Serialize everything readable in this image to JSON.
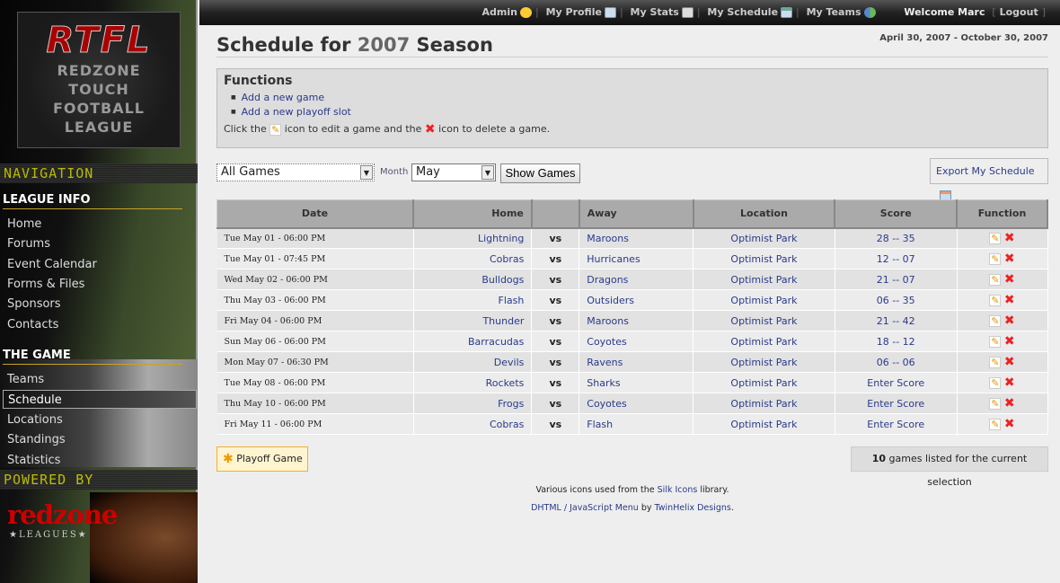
{
  "logo": {
    "abbr": "RTFL",
    "lines": [
      "REDZONE",
      "TOUCH",
      "FOOTBALL",
      "LEAGUE"
    ]
  },
  "sidebar": {
    "navigation_label": "NAVIGATION",
    "league_info_label": "LEAGUE INFO",
    "league_info": [
      "Home",
      "Forums",
      "Event Calendar",
      "Forms & Files",
      "Sponsors",
      "Contacts"
    ],
    "the_game_label": "THE GAME",
    "the_game": [
      "Teams",
      "Schedule",
      "Locations",
      "Standings",
      "Statistics"
    ],
    "active": "Schedule",
    "powered_by_label": "POWERED BY",
    "powered_logo": "redzone",
    "powered_logo_sub": "★LEAGUES★"
  },
  "topbar": {
    "admin": "Admin",
    "profile": "My Profile",
    "stats": "My Stats",
    "schedule": "My Schedule",
    "teams": "My Teams",
    "welcome": "Welcome Marc",
    "logout": "Logout"
  },
  "page": {
    "title_pre": "Schedule for",
    "year": "2007",
    "title_post": "Season",
    "date_range": "April 30, 2007 - October 30, 2007"
  },
  "functions": {
    "title": "Functions",
    "links": [
      "Add a new game",
      "Add a new playoff slot"
    ],
    "help_1": "Click the",
    "help_2": "icon to edit a game and the",
    "help_3": "icon to delete a game."
  },
  "filters": {
    "game_filter": "All Games",
    "month_label": "Month",
    "month": "May",
    "show_button": "Show Games",
    "export": "Export My Schedule"
  },
  "table": {
    "headers": [
      "Date",
      "Home",
      "",
      "Away",
      "Location",
      "Score",
      "Function"
    ],
    "rows": [
      {
        "date": "Tue May 01 - 06:00 PM",
        "home": "Lightning",
        "vs": "vs",
        "away": "Maroons",
        "location": "Optimist Park",
        "score": "28 -- 35"
      },
      {
        "date": "Tue May 01 - 07:45 PM",
        "home": "Cobras",
        "vs": "vs",
        "away": "Hurricanes",
        "location": "Optimist Park",
        "score": "12 -- 07"
      },
      {
        "date": "Wed May 02 - 06:00 PM",
        "home": "Bulldogs",
        "vs": "vs",
        "away": "Dragons",
        "location": "Optimist Park",
        "score": "21 -- 07"
      },
      {
        "date": "Thu May 03 - 06:00 PM",
        "home": "Flash",
        "vs": "vs",
        "away": "Outsiders",
        "location": "Optimist Park",
        "score": "06 -- 35"
      },
      {
        "date": "Fri May 04 - 06:00 PM",
        "home": "Thunder",
        "vs": "vs",
        "away": "Maroons",
        "location": "Optimist Park",
        "score": "21 -- 42"
      },
      {
        "date": "Sun May 06 - 06:00 PM",
        "home": "Barracudas",
        "vs": "vs",
        "away": "Coyotes",
        "location": "Optimist Park",
        "score": "18 -- 12"
      },
      {
        "date": "Mon May 07 - 06:30 PM",
        "home": "Devils",
        "vs": "vs",
        "away": "Ravens",
        "location": "Optimist Park",
        "score": "06 -- 06"
      },
      {
        "date": "Tue May 08 - 06:00 PM",
        "home": "Rockets",
        "vs": "vs",
        "away": "Sharks",
        "location": "Optimist Park",
        "score": "Enter Score"
      },
      {
        "date": "Thu May 10 - 06:00 PM",
        "home": "Frogs",
        "vs": "vs",
        "away": "Coyotes",
        "location": "Optimist Park",
        "score": "Enter Score"
      },
      {
        "date": "Fri May 11 - 06:00 PM",
        "home": "Cobras",
        "vs": "vs",
        "away": "Flash",
        "location": "Optimist Park",
        "score": "Enter Score"
      }
    ]
  },
  "playoff_button": "Playoff Game",
  "count": {
    "number": "10",
    "text": "games listed for the current selection"
  },
  "footer": {
    "line1_pre": "Various icons used from the",
    "line1_link": "Silk Icons",
    "line1_post": "library.",
    "line2_link": "DHTML / JavaScript Menu",
    "line2_mid": "by",
    "line2_link2": "TwinHelix Designs",
    "line2_post": "."
  }
}
